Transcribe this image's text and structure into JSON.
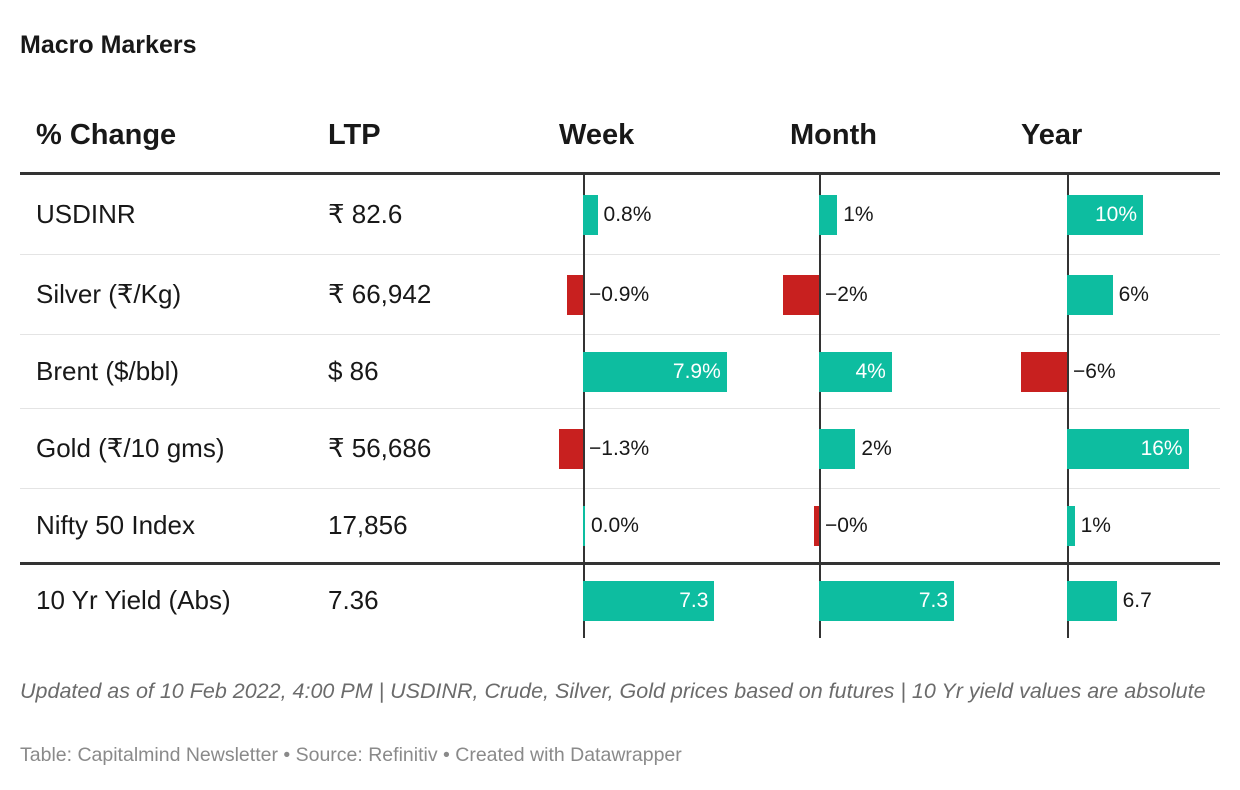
{
  "title": "Macro Markers",
  "headers": {
    "label": "% Change",
    "ltp": "LTP",
    "week": "Week",
    "month": "Month",
    "year": "Year"
  },
  "chart_data": {
    "type": "table",
    "columns": [
      "% Change",
      "LTP",
      "Week",
      "Month",
      "Year"
    ],
    "colors": {
      "positive": "#0dbda0",
      "negative": "#c8201f"
    },
    "rows": [
      {
        "label": "USDINR",
        "ltp": "₹ 82.6",
        "week": {
          "value": 0.8,
          "text": "0.8%"
        },
        "month": {
          "value": 1,
          "text": "1%"
        },
        "year": {
          "value": 10,
          "text": "10%"
        }
      },
      {
        "label": "Silver (₹/Kg)",
        "ltp": "₹ 66,942",
        "week": {
          "value": -0.9,
          "text": "−0.9%"
        },
        "month": {
          "value": -2,
          "text": "−2%"
        },
        "year": {
          "value": 6,
          "text": "6%"
        }
      },
      {
        "label": "Brent ($/bbl)",
        "ltp": "$ 86",
        "week": {
          "value": 7.9,
          "text": "7.9%"
        },
        "month": {
          "value": 4,
          "text": "4%"
        },
        "year": {
          "value": -6,
          "text": "−6%"
        }
      },
      {
        "label": "Gold (₹/10 gms)",
        "ltp": "₹ 56,686",
        "week": {
          "value": -1.3,
          "text": "−1.3%"
        },
        "month": {
          "value": 2,
          "text": "2%"
        },
        "year": {
          "value": 16,
          "text": "16%"
        }
      },
      {
        "label": "Nifty 50 Index",
        "ltp": "17,856",
        "week": {
          "value": 0.0,
          "text": "0.0%"
        },
        "month": {
          "value": -0.3,
          "text": "−0%"
        },
        "year": {
          "value": 1,
          "text": "1%"
        }
      },
      {
        "label": "10 Yr Yield (Abs)",
        "ltp": "7.36",
        "week": {
          "value": 7.3,
          "text": "7.3"
        },
        "month": {
          "value": 7.3,
          "text": "7.3"
        },
        "year": {
          "value": 6.7,
          "text": "6.7"
        }
      }
    ]
  },
  "notes": "Updated as of 10 Feb 2022, 4:00 PM | USDINR, Crude, Silver, Gold prices based on futures | 10 Yr yield values are absolute",
  "credit": "Table: Capitalmind Newsletter • Source: Refinitiv • Created with Datawrapper"
}
